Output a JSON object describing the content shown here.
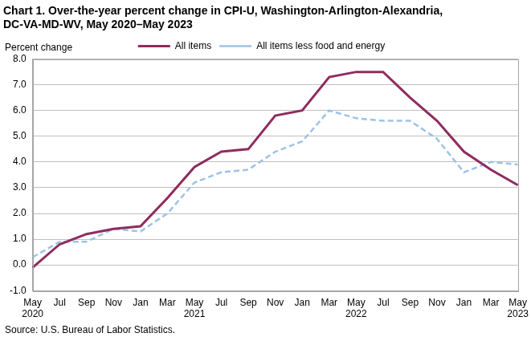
{
  "chart_data": {
    "type": "line",
    "title": [
      "Chart 1. Over-the-year percent change in CPI-U, Washington-Arlington-Alexandria,",
      "DC-VA-MD-WV, May 2020–May 2023"
    ],
    "y_label": "Percent change",
    "source": "Source: U.S. Bureau of Labor Statistics.",
    "categories": [
      "May 2020",
      "Jul",
      "Sep",
      "Nov",
      "Jan",
      "Mar",
      "May 2021",
      "Jul",
      "Sep",
      "Nov",
      "Jan",
      "Mar",
      "May 2022",
      "Jul",
      "Sep",
      "Nov",
      "Jan",
      "Mar",
      "May 2023"
    ],
    "series": [
      {
        "name": "All items",
        "color": "#8e2c5e",
        "line_style": "solid",
        "marker": "none",
        "values": [
          -0.1,
          0.8,
          1.2,
          1.4,
          1.5,
          2.6,
          3.8,
          4.4,
          4.5,
          5.8,
          6.0,
          7.3,
          7.5,
          7.5,
          6.5,
          5.6,
          4.4,
          3.7,
          3.1
        ]
      },
      {
        "name": "All items less food and energy",
        "color": "#9dc3e6",
        "line_style": "dashed",
        "marker": "none",
        "values": [
          0.3,
          0.9,
          0.9,
          1.4,
          1.3,
          2.0,
          3.2,
          3.6,
          3.7,
          4.4,
          4.8,
          6.0,
          5.7,
          5.6,
          5.6,
          4.9,
          3.6,
          4.0,
          3.9
        ]
      }
    ],
    "ylim": [
      -1,
      8
    ],
    "yticks": [
      {
        "value": -1,
        "label": "-1.0"
      },
      {
        "value": 0,
        "label": "0.0"
      },
      {
        "value": 1,
        "label": "1.0"
      },
      {
        "value": 2,
        "label": "2.0"
      },
      {
        "value": 3,
        "label": "3.0"
      },
      {
        "value": 4,
        "label": "4.0"
      },
      {
        "value": 5,
        "label": "5.0"
      },
      {
        "value": 6,
        "label": "6.0"
      },
      {
        "value": 7,
        "label": "7.0"
      },
      {
        "value": 8,
        "label": "8.0"
      }
    ],
    "grid": true,
    "legend": "top"
  }
}
